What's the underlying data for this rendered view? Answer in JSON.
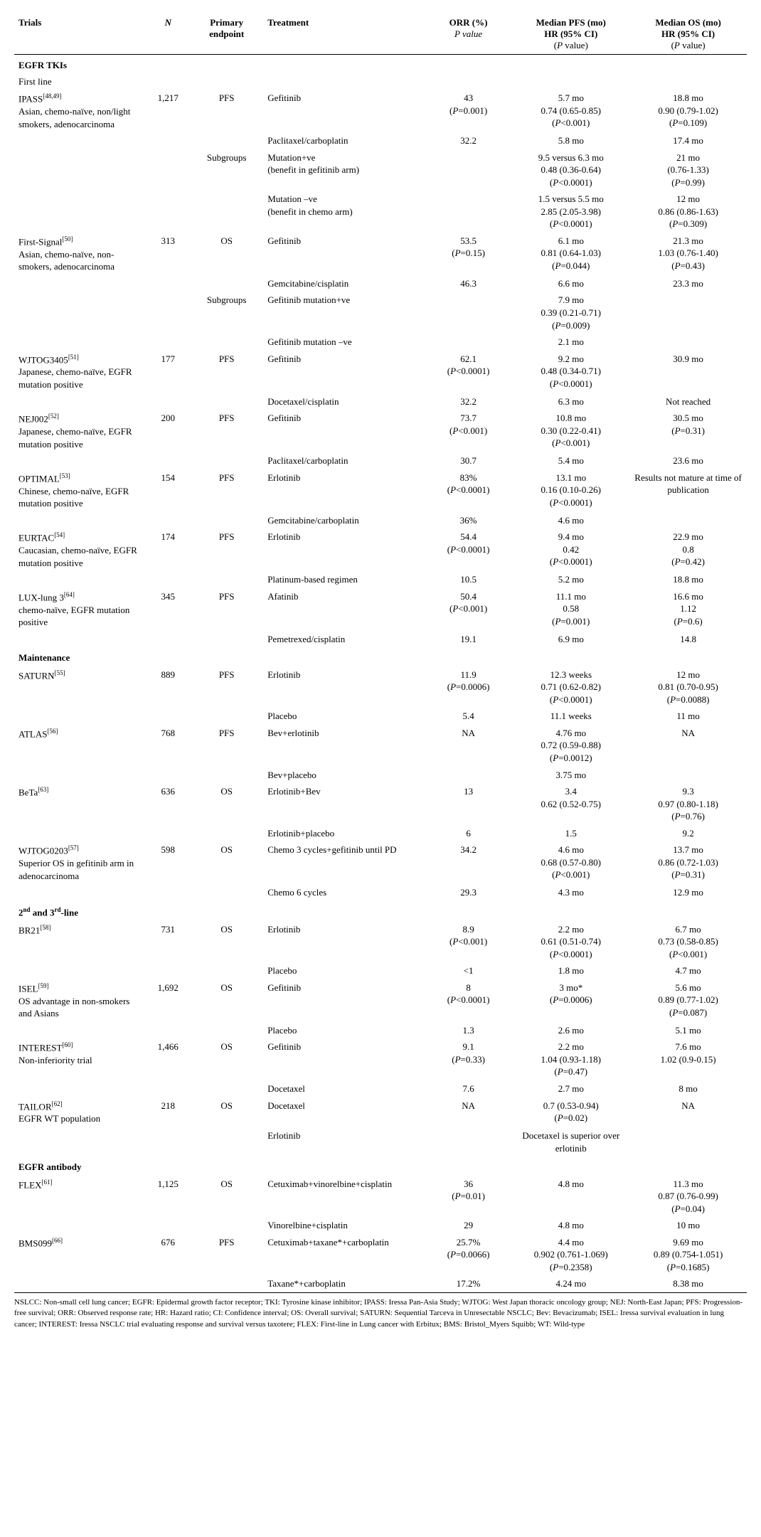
{
  "headers": {
    "trials": "Trials",
    "n": "N",
    "endpoint": "Primary endpoint",
    "treatment": "Treatment",
    "orr_top": "ORR (%)",
    "orr_sub": "P value",
    "pfs_top": "Median PFS (mo)",
    "pfs_mid": "HR (95% CI)",
    "pfs_sub": "(P value)",
    "os_top": "Median OS (mo)",
    "os_mid": "HR (95% CI)",
    "os_sub": "(P value)"
  },
  "sections": [
    {
      "type": "section",
      "label": "EGFR TKIs"
    },
    {
      "type": "sub",
      "label": "First line"
    },
    {
      "type": "trial",
      "name": "IPASS",
      "refs": "[48,49]",
      "desc": "Asian, chemo-naïve, non/light smokers, adenocarcinoma",
      "n": "1,217",
      "ep": "PFS",
      "tx": "Gefitinib",
      "orr": [
        "43",
        "(P=0.001)"
      ],
      "pfs": [
        "5.7 mo",
        "0.74 (0.65-0.85)",
        "(P<0.001)"
      ],
      "os": [
        "18.8 mo",
        "0.90 (0.79-1.02)",
        "(P=0.109)"
      ]
    },
    {
      "type": "row",
      "tx": "Paclitaxel/carboplatin",
      "orr": [
        "32.2"
      ],
      "pfs": [
        "5.8 mo"
      ],
      "os": [
        "17.4 mo"
      ]
    },
    {
      "type": "row",
      "ep": "Subgroups",
      "tx": "Mutation+ve\n(benefit in gefitinib arm)",
      "pfs": [
        "9.5 versus 6.3 mo",
        "0.48 (0.36-0.64)",
        "(P<0.0001)"
      ],
      "os": [
        "21 mo",
        "(0.76-1.33)",
        "(P=0.99)"
      ]
    },
    {
      "type": "row",
      "tx": "Mutation –ve\n(benefit in chemo arm)",
      "pfs": [
        "1.5 versus 5.5 mo",
        "2.85 (2.05-3.98)",
        "(P<0.0001)"
      ],
      "os": [
        "12 mo",
        "0.86 (0.86-1.63)",
        "(P=0.309)"
      ]
    },
    {
      "type": "trial",
      "name": "First-Signal",
      "refs": "[50]",
      "desc": "Asian, chemo-naïve, non-smokers, adenocarcinoma",
      "n": "313",
      "ep": "OS",
      "tx": "Gefitinib",
      "orr": [
        "53.5",
        "(P=0.15)"
      ],
      "pfs": [
        "6.1 mo",
        "0.81 (0.64-1.03)",
        "(P=0.044)"
      ],
      "os": [
        "21.3 mo",
        "1.03 (0.76-1.40)",
        "(P=0.43)"
      ]
    },
    {
      "type": "row",
      "tx": "Gemcitabine/cisplatin",
      "orr": [
        "46.3"
      ],
      "pfs": [
        "6.6 mo"
      ],
      "os": [
        "23.3 mo"
      ]
    },
    {
      "type": "row",
      "ep": "Subgroups",
      "tx": "Gefitinib mutation+ve",
      "pfs": [
        "7.9 mo",
        "0.39 (0.21-0.71)",
        "(P=0.009)"
      ]
    },
    {
      "type": "row",
      "tx": "Gefitinib mutation –ve",
      "pfs": [
        "2.1 mo"
      ]
    },
    {
      "type": "trial",
      "name": "WJTOG3405",
      "refs": "[51]",
      "desc": "Japanese, chemo-naïve, EGFR mutation positive",
      "n": "177",
      "ep": "PFS",
      "tx": "Gefitinib",
      "orr": [
        "62.1",
        "(P<0.0001)"
      ],
      "pfs": [
        "9.2 mo",
        "0.48 (0.34-0.71)",
        "(P<0.0001)"
      ],
      "os": [
        "30.9 mo"
      ]
    },
    {
      "type": "row",
      "tx": "Docetaxel/cisplatin",
      "orr": [
        "32.2"
      ],
      "pfs": [
        "6.3 mo"
      ],
      "os": [
        "Not reached"
      ]
    },
    {
      "type": "trial",
      "name": "NEJ002",
      "refs": "[52]",
      "desc": "Japanese, chemo-naïve, EGFR mutation positive",
      "n": "200",
      "ep": "PFS",
      "tx": "Gefitinib",
      "orr": [
        "73.7",
        "(P<0.001)"
      ],
      "pfs": [
        "10.8 mo",
        "0.30 (0.22-0.41)",
        "(P<0.001)"
      ],
      "os": [
        "30.5 mo",
        "(P=0.31)"
      ]
    },
    {
      "type": "row",
      "tx": "Paclitaxel/carboplatin",
      "orr": [
        "30.7"
      ],
      "pfs": [
        "5.4 mo"
      ],
      "os": [
        "23.6 mo"
      ]
    },
    {
      "type": "trial",
      "name": "OPTIMAL",
      "refs": "[53]",
      "desc": "Chinese, chemo-naïve, EGFR mutation positive",
      "n": "154",
      "ep": "PFS",
      "tx": "Erlotinib",
      "orr": [
        "83%",
        "(P<0.0001)"
      ],
      "pfs": [
        "13.1 mo",
        "0.16 (0.10-0.26)",
        "(P<0.0001)"
      ],
      "os": [
        "Results not mature at time of publication"
      ]
    },
    {
      "type": "row",
      "tx": "Gemcitabine/carboplatin",
      "orr": [
        "36%"
      ],
      "pfs": [
        "4.6 mo"
      ]
    },
    {
      "type": "trial",
      "name": "EURTAC",
      "refs": "[54]",
      "desc": "Caucasian, chemo-naïve, EGFR mutation positive",
      "n": "174",
      "ep": "PFS",
      "tx": "Erlotinib",
      "orr": [
        "54.4",
        "(P<0.0001)"
      ],
      "pfs": [
        "9.4 mo",
        "0.42",
        "(P<0.0001)"
      ],
      "os": [
        "22.9 mo",
        "0.8",
        "(P=0.42)"
      ]
    },
    {
      "type": "row",
      "tx": "Platinum-based regimen",
      "orr": [
        "10.5"
      ],
      "pfs": [
        "5.2 mo"
      ],
      "os": [
        "18.8 mo"
      ]
    },
    {
      "type": "trial",
      "name": "LUX-lung 3",
      "refs": "[64]",
      "desc": "chemo-naïve, EGFR mutation positive",
      "n": "345",
      "ep": "PFS",
      "tx": "Afatinib",
      "orr": [
        "50.4",
        "(P<0.001)"
      ],
      "pfs": [
        "11.1 mo",
        "0.58",
        "(P=0.001)"
      ],
      "os": [
        "16.6 mo",
        "1.12",
        "(P=0.6)"
      ]
    },
    {
      "type": "row",
      "tx": "Pemetrexed/cisplatin",
      "orr": [
        "19.1"
      ],
      "pfs": [
        "6.9 mo"
      ],
      "os": [
        "14.8"
      ]
    },
    {
      "type": "section",
      "label": "Maintenance"
    },
    {
      "type": "trial",
      "name": "SATURN",
      "refs": "[55]",
      "n": "889",
      "ep": "PFS",
      "tx": "Erlotinib",
      "orr": [
        "11.9",
        "(P=0.0006)"
      ],
      "pfs": [
        "12.3 weeks",
        "0.71 (0.62-0.82)",
        "(P<0.0001)"
      ],
      "os": [
        "12 mo",
        "0.81 (0.70-0.95)",
        "(P=0.0088)"
      ]
    },
    {
      "type": "row",
      "tx": "Placebo",
      "orr": [
        "5.4"
      ],
      "pfs": [
        "11.1 weeks"
      ],
      "os": [
        "11 mo"
      ]
    },
    {
      "type": "trial",
      "name": "ATLAS",
      "refs": "[56]",
      "n": "768",
      "ep": "PFS",
      "tx": "Bev+erlotinib",
      "orr": [
        "NA"
      ],
      "pfs": [
        "4.76 mo",
        "0.72 (0.59-0.88)",
        "(P=0.0012)"
      ],
      "os": [
        "NA"
      ]
    },
    {
      "type": "row",
      "tx": "Bev+placebo",
      "pfs": [
        "3.75 mo"
      ]
    },
    {
      "type": "trial",
      "name": "BeTa",
      "refs": "[63]",
      "n": "636",
      "ep": "OS",
      "tx": "Erlotinib+Bev",
      "orr": [
        "13"
      ],
      "pfs": [
        "3.4",
        "0.62 (0.52-0.75)"
      ],
      "os": [
        "9.3",
        "0.97 (0.80-1.18)",
        "(P=0.76)"
      ]
    },
    {
      "type": "row",
      "tx": "Erlotinib+placebo",
      "orr": [
        "6"
      ],
      "pfs": [
        "1.5"
      ],
      "os": [
        "9.2"
      ]
    },
    {
      "type": "trial",
      "name": "WJTOG0203",
      "refs": "[57]",
      "desc": "Superior OS in gefitinib arm in adenocarcinoma",
      "n": "598",
      "ep": "OS",
      "tx": "Chemo 3 cycles+gefitinib until PD",
      "orr": [
        "34.2"
      ],
      "pfs": [
        "4.6 mo",
        "0.68 (0.57-0.80)",
        "(P<0.001)"
      ],
      "os": [
        "13.7 mo",
        "0.86 (0.72-1.03)",
        "(P=0.31)"
      ]
    },
    {
      "type": "row",
      "tx": "Chemo 6 cycles",
      "orr": [
        "29.3"
      ],
      "pfs": [
        "4.3 mo"
      ],
      "os": [
        "12.9 mo"
      ]
    },
    {
      "type": "section",
      "label": "2<sup>nd</sup> and 3<sup>rd</sup>-line"
    },
    {
      "type": "trial",
      "name": "BR21",
      "refs": "[58]",
      "n": "731",
      "ep": "OS",
      "tx": "Erlotinib",
      "orr": [
        "8.9",
        "(P<0.001)"
      ],
      "pfs": [
        "2.2 mo",
        "0.61 (0.51-0.74)",
        "(P<0.0001)"
      ],
      "os": [
        "6.7 mo",
        "0.73 (0.58-0.85)",
        "(P<0.001)"
      ]
    },
    {
      "type": "row",
      "tx": "Placebo",
      "orr": [
        "<1"
      ],
      "pfs": [
        "1.8 mo"
      ],
      "os": [
        "4.7 mo"
      ]
    },
    {
      "type": "trial",
      "name": "ISEL",
      "refs": "[59]",
      "desc": "OS advantage in non-smokers and Asians",
      "n": "1,692",
      "ep": "OS",
      "tx": "Gefitinib",
      "orr": [
        "8",
        "(P<0.0001)"
      ],
      "pfs": [
        "3 mo*",
        "(P=0.0006)"
      ],
      "os": [
        "5.6 mo",
        "0.89 (0.77-1.02)",
        "(P=0.087)"
      ]
    },
    {
      "type": "row",
      "tx": "Placebo",
      "orr": [
        "1.3"
      ],
      "pfs": [
        "2.6 mo"
      ],
      "os": [
        "5.1 mo"
      ]
    },
    {
      "type": "trial",
      "name": "INTEREST",
      "refs": "[60]",
      "desc": "Non-inferiority trial",
      "n": "1,466",
      "ep": "OS",
      "tx": "Gefitinib",
      "orr": [
        "9.1",
        "(P=0.33)"
      ],
      "pfs": [
        "2.2 mo",
        "1.04 (0.93-1.18)",
        "(P=0.47)"
      ],
      "os": [
        "7.6 mo",
        "1.02 (0.9-0.15)"
      ]
    },
    {
      "type": "row",
      "tx": "Docetaxel",
      "orr": [
        "7.6"
      ],
      "pfs": [
        "2.7 mo"
      ],
      "os": [
        "8 mo"
      ]
    },
    {
      "type": "trial",
      "name": "TAILOR",
      "refs": "[62]",
      "desc": "EGFR WT population",
      "n": "218",
      "ep": "OS",
      "tx": "Docetaxel",
      "orr": [
        "NA"
      ],
      "pfs": [
        "0.7 (0.53-0.94)",
        "(P=0.02)"
      ],
      "os": [
        "NA"
      ]
    },
    {
      "type": "row",
      "tx": "Erlotinib",
      "pfs": [
        "Docetaxel is superior over erlotinib"
      ]
    },
    {
      "type": "section",
      "label": "EGFR antibody"
    },
    {
      "type": "trial",
      "name": "FLEX",
      "refs": "[61]",
      "n": "1,125",
      "ep": "OS",
      "tx": "Cetuximab+vinorelbine+cisplatin",
      "orr": [
        "36",
        "(P=0.01)"
      ],
      "pfs": [
        "4.8 mo"
      ],
      "os": [
        "11.3 mo",
        "0.87 (0.76-0.99)",
        "(P=0.04)"
      ]
    },
    {
      "type": "row",
      "tx": "Vinorelbine+cisplatin",
      "orr": [
        "29"
      ],
      "pfs": [
        "4.8 mo"
      ],
      "os": [
        "10 mo"
      ]
    },
    {
      "type": "trial",
      "name": "BMS099",
      "refs": "[66]",
      "n": "676",
      "ep": "PFS",
      "tx": "Cetuximab+taxane*+carboplatin",
      "orr": [
        "25.7%",
        "(P=0.0066)"
      ],
      "pfs": [
        "4.4 mo",
        "0.902 (0.761-1.069)",
        "(P=0.2358)"
      ],
      "os": [
        "9.69 mo",
        "0.89 (0.754-1.051)",
        "(P=0.1685)"
      ]
    },
    {
      "type": "row",
      "tx": "Taxane*+carboplatin",
      "orr": [
        "17.2%"
      ],
      "pfs": [
        "4.24 mo"
      ],
      "os": [
        "8.38 mo"
      ]
    }
  ],
  "footnote": "NSLCC: Non-small cell lung cancer; EGFR: Epidermal growth factor receptor; TKI: Tyrosine kinase inhibitor; IPASS: Iressa Pan-Asia Study; WJTOG: West Japan thoracic oncology group; NEJ: North-East Japan; PFS: Progression-free survival; ORR: Observed response rate; HR: Hazard ratio; CI: Confidence interval; OS: Overall survival; SATURN: Sequential Tarceva in Unresectable NSCLC; Bev: Bevacizumab; ISEL: Iressa survival evaluation in lung cancer; INTEREST: Iressa NSCLC trial evaluating response and survival versus taxotere; FLEX: First-line in Lung cancer with Erbitux; BMS: Bristol_Myers Squibb; WT: Wild-type",
  "columns_width": [
    "18%",
    "6%",
    "10%",
    "22%",
    "12%",
    "16%",
    "16%"
  ],
  "colors": {
    "text": "#000000",
    "bg": "#ffffff",
    "rule": "#000000"
  }
}
